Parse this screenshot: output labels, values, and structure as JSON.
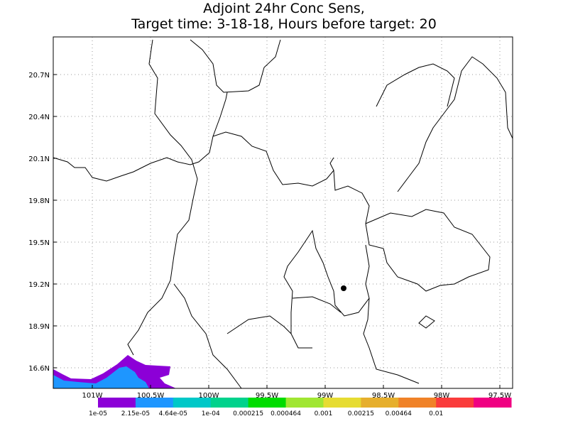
{
  "title": [
    "Adjoint 24hr Conc Sens,",
    "Target time: 3-18-18, Hours before target: 20"
  ],
  "lat_labels": [
    "20.7N",
    "20.4N",
    "20.1N",
    "19.8N",
    "19.5N",
    "19.2N",
    "18.9N",
    "16.6N"
  ],
  "lon_labels": [
    "101W",
    "100.5W",
    "100W",
    "99.5W",
    "99W",
    "98.5W",
    "98W",
    "97.5W"
  ],
  "colorbar": {
    "labels": [
      "1e-05",
      "2.15e-05",
      "4.64e-05",
      "1e-04",
      "0.000215",
      "0.000464",
      "0.001",
      "0.00215",
      "0.00464",
      "0.01"
    ],
    "colors": [
      "#8c00d7",
      "#1e96ff",
      "#00c8c8",
      "#00d28c",
      "#00dc00",
      "#a0e632",
      "#e6dc32",
      "#e6af2d",
      "#f08228",
      "#fa3c3c",
      "#f00082"
    ]
  }
}
